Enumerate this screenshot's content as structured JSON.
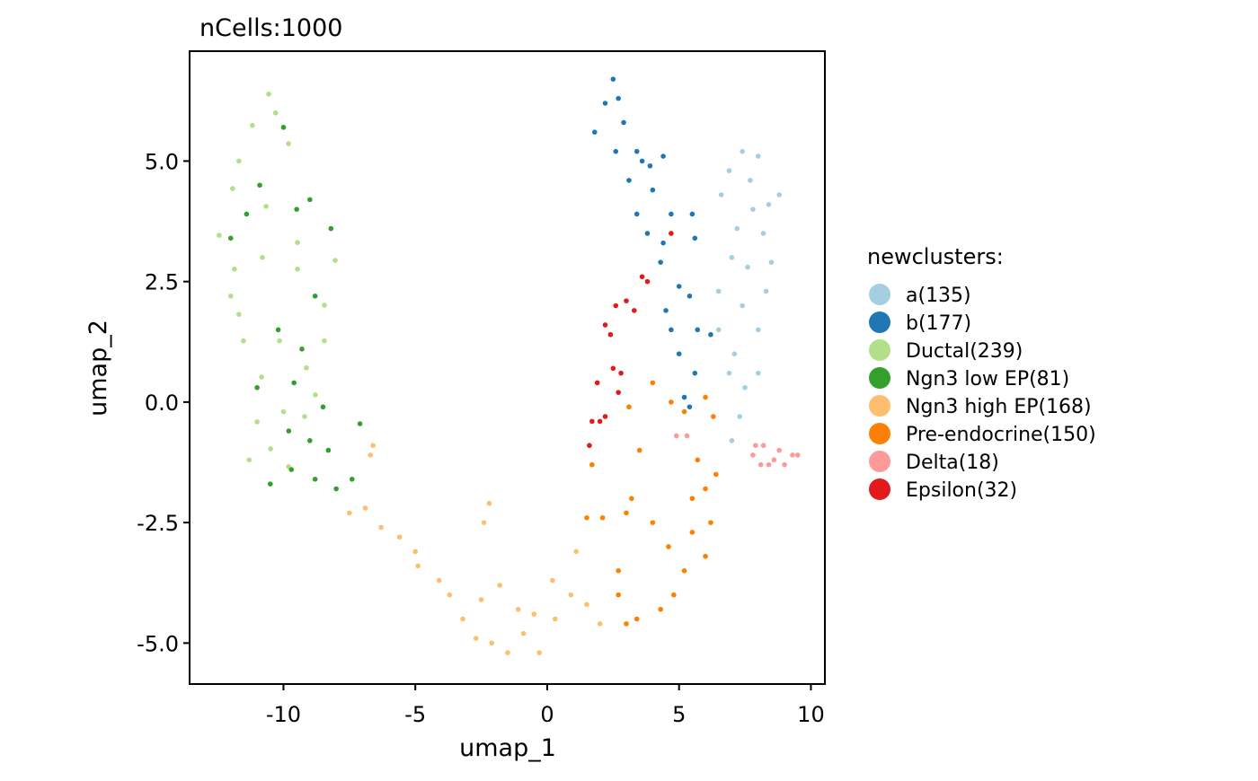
{
  "chart_data": {
    "type": "scatter",
    "title": "nCells:1000",
    "xlabel": "umap_1",
    "ylabel": "umap_2",
    "xlim": [
      -13.56,
      10.53
    ],
    "ylim": [
      -5.85,
      7.28
    ],
    "xticks": [
      -10,
      -5,
      0,
      5,
      10
    ],
    "xtick_labels": [
      "-10",
      "-5",
      "0",
      "5",
      "10"
    ],
    "yticks": [
      -5,
      -2.5,
      0,
      2.5,
      5
    ],
    "ytick_labels": [
      "-5.0",
      "-2.5",
      "0.0",
      "2.5",
      "5.0"
    ],
    "grid": false,
    "legend_title": "newclusters:",
    "legend_position": "right",
    "series": [
      {
        "name": "a(135)",
        "color": "#A6CEE3",
        "points": [
          [
            6.9,
            4.8
          ],
          [
            7.4,
            5.2
          ],
          [
            8.0,
            5.1
          ],
          [
            8.8,
            4.3
          ],
          [
            7.8,
            4.0
          ],
          [
            7.2,
            3.6
          ],
          [
            8.2,
            3.5
          ],
          [
            7.0,
            3.0
          ],
          [
            7.6,
            2.8
          ],
          [
            8.3,
            2.3
          ],
          [
            6.5,
            2.3
          ],
          [
            7.4,
            2.0
          ],
          [
            8.0,
            1.5
          ],
          [
            6.5,
            1.5
          ],
          [
            7.1,
            1.0
          ],
          [
            6.9,
            0.6
          ],
          [
            7.5,
            0.3
          ],
          [
            8.0,
            0.6
          ],
          [
            7.3,
            -0.3
          ],
          [
            7.0,
            -0.8
          ],
          [
            8.5,
            2.9
          ],
          [
            7.7,
            4.6
          ],
          [
            8.4,
            4.1
          ],
          [
            6.6,
            4.3
          ]
        ]
      },
      {
        "name": "b(177)",
        "color": "#1F78B4",
        "points": [
          [
            2.5,
            6.7
          ],
          [
            2.2,
            6.2
          ],
          [
            1.8,
            5.6
          ],
          [
            2.9,
            5.8
          ],
          [
            2.6,
            5.2
          ],
          [
            3.4,
            5.2
          ],
          [
            3.6,
            5.0
          ],
          [
            4.4,
            5.1
          ],
          [
            3.1,
            4.6
          ],
          [
            4.0,
            4.4
          ],
          [
            3.4,
            3.9
          ],
          [
            4.7,
            3.9
          ],
          [
            3.8,
            3.5
          ],
          [
            4.4,
            3.3
          ],
          [
            5.5,
            3.9
          ],
          [
            5.6,
            3.4
          ],
          [
            4.3,
            2.9
          ],
          [
            5.0,
            2.4
          ],
          [
            4.5,
            1.9
          ],
          [
            5.4,
            2.2
          ],
          [
            4.7,
            1.5
          ],
          [
            5.7,
            1.5
          ],
          [
            5.0,
            1.0
          ],
          [
            5.6,
            0.6
          ],
          [
            5.2,
            0.1
          ],
          [
            5.4,
            -0.1
          ],
          [
            6.2,
            1.4
          ],
          [
            2.7,
            6.3
          ],
          [
            3.9,
            4.9
          ]
        ]
      },
      {
        "name": "Ductal(239)",
        "color": "#B2DF8A",
        "points": [
          [
            -10.56,
            6.39
          ],
          [
            -11.69,
            5.0
          ],
          [
            -12.44,
            3.46
          ],
          [
            -11.86,
            2.76
          ],
          [
            -9.47,
            2.76
          ],
          [
            -8.45,
            2.01
          ],
          [
            -11.52,
            1.27
          ],
          [
            -10.15,
            1.27
          ],
          [
            -9.13,
            0.71
          ],
          [
            -11.0,
            -0.41
          ],
          [
            -10.49,
            -0.97
          ],
          [
            -9.81,
            -1.34
          ],
          [
            -8.79,
            0.15
          ],
          [
            -8.04,
            2.94
          ],
          [
            -9.81,
            5.36
          ],
          [
            -11.18,
            5.74
          ],
          [
            -11.93,
            4.43
          ],
          [
            -10.66,
            4.06
          ],
          [
            -9.47,
            3.31
          ],
          [
            -8.45,
            1.27
          ],
          [
            -10.83,
            0.52
          ],
          [
            -11.69,
            1.82
          ],
          [
            -10.3,
            6.0
          ],
          [
            -12.0,
            2.2
          ],
          [
            -10.0,
            -0.2
          ],
          [
            -11.3,
            -1.2
          ],
          [
            -9.2,
            -0.3
          ],
          [
            -10.8,
            3.0
          ]
        ]
      },
      {
        "name": "Ngn3 low EP(81)",
        "color": "#33A02C",
        "points": [
          [
            -10.0,
            5.7
          ],
          [
            -10.9,
            4.5
          ],
          [
            -9.5,
            4.0
          ],
          [
            -9.0,
            4.2
          ],
          [
            -8.2,
            3.6
          ],
          [
            -12.0,
            3.4
          ],
          [
            -11.4,
            3.9
          ],
          [
            -8.8,
            2.2
          ],
          [
            -10.2,
            1.5
          ],
          [
            -9.3,
            1.1
          ],
          [
            -11.0,
            0.3
          ],
          [
            -9.6,
            0.4
          ],
          [
            -8.5,
            -0.1
          ],
          [
            -7.1,
            -0.45
          ],
          [
            -9.0,
            -0.8
          ],
          [
            -8.3,
            -1.0
          ],
          [
            -9.7,
            -1.4
          ],
          [
            -8.8,
            -1.6
          ],
          [
            -8.0,
            -1.8
          ],
          [
            -10.5,
            -1.7
          ],
          [
            -7.4,
            -1.6
          ],
          [
            -9.8,
            -0.6
          ]
        ]
      },
      {
        "name": "Ngn3 high EP(168)",
        "color": "#FDBF6F",
        "points": [
          [
            -6.6,
            -0.9
          ],
          [
            -6.7,
            -1.1
          ],
          [
            -7.5,
            -2.3
          ],
          [
            -6.9,
            -2.2
          ],
          [
            -6.3,
            -2.6
          ],
          [
            -5.6,
            -2.8
          ],
          [
            -5.0,
            -3.1
          ],
          [
            -4.9,
            -3.4
          ],
          [
            -4.1,
            -3.7
          ],
          [
            -3.7,
            -4.0
          ],
          [
            -3.2,
            -4.5
          ],
          [
            -2.7,
            -4.9
          ],
          [
            -2.1,
            -5.0
          ],
          [
            -1.5,
            -5.2
          ],
          [
            -0.9,
            -4.8
          ],
          [
            -0.3,
            -5.2
          ],
          [
            -0.5,
            -4.4
          ],
          [
            0.3,
            -4.5
          ],
          [
            0.9,
            -4.0
          ],
          [
            1.5,
            -4.2
          ],
          [
            2.0,
            -4.6
          ],
          [
            -2.2,
            -2.1
          ],
          [
            -2.4,
            -2.5
          ],
          [
            0.2,
            -3.7
          ],
          [
            1.1,
            -3.1
          ],
          [
            -1.8,
            -3.8
          ],
          [
            -2.5,
            -4.1
          ],
          [
            -1.1,
            -4.3
          ]
        ]
      },
      {
        "name": "Pre-endocrine(150)",
        "color": "#FF7F00",
        "points": [
          [
            4.0,
            0.4
          ],
          [
            4.7,
            0.0
          ],
          [
            5.2,
            -0.2
          ],
          [
            6.0,
            0.1
          ],
          [
            6.3,
            -0.3
          ],
          [
            5.7,
            -1.2
          ],
          [
            6.4,
            -1.5
          ],
          [
            6.0,
            -1.8
          ],
          [
            5.5,
            -2.0
          ],
          [
            5.5,
            -2.7
          ],
          [
            6.2,
            -2.5
          ],
          [
            6.0,
            -3.2
          ],
          [
            5.2,
            -3.5
          ],
          [
            4.6,
            -3.0
          ],
          [
            4.8,
            -4.0
          ],
          [
            4.3,
            -4.3
          ],
          [
            3.4,
            -4.5
          ],
          [
            3.0,
            -4.6
          ],
          [
            2.7,
            -3.5
          ],
          [
            3.2,
            -2.0
          ],
          [
            3.5,
            -1.0
          ],
          [
            3.1,
            -0.1
          ],
          [
            1.7,
            -1.3
          ],
          [
            1.5,
            -2.4
          ],
          [
            2.1,
            -2.4
          ],
          [
            3.0,
            -2.3
          ],
          [
            4.0,
            -2.5
          ],
          [
            2.7,
            -4.0
          ]
        ]
      },
      {
        "name": "Delta(18)",
        "color": "#FB9A99",
        "points": [
          [
            4.9,
            -0.7
          ],
          [
            5.3,
            -0.7
          ],
          [
            7.8,
            -1.1
          ],
          [
            8.2,
            -0.9
          ],
          [
            8.6,
            -1.2
          ],
          [
            9.0,
            -1.3
          ],
          [
            9.3,
            -1.1
          ],
          [
            9.5,
            -1.1
          ],
          [
            8.4,
            -1.3
          ],
          [
            8.8,
            -1.0
          ],
          [
            7.9,
            -0.9
          ],
          [
            8.1,
            -1.3
          ]
        ]
      },
      {
        "name": "Epsilon(32)",
        "color": "#E31A1C",
        "points": [
          [
            4.7,
            3.5
          ],
          [
            3.8,
            2.5
          ],
          [
            3.6,
            2.6
          ],
          [
            3.0,
            2.1
          ],
          [
            2.6,
            2.0
          ],
          [
            3.3,
            1.9
          ],
          [
            2.2,
            1.6
          ],
          [
            2.4,
            1.4
          ],
          [
            2.5,
            0.7
          ],
          [
            2.8,
            0.6
          ],
          [
            1.9,
            0.4
          ],
          [
            2.7,
            0.2
          ],
          [
            1.7,
            -0.4
          ],
          [
            2.0,
            -0.4
          ],
          [
            1.6,
            -0.9
          ],
          [
            2.2,
            -0.3
          ]
        ]
      }
    ]
  }
}
